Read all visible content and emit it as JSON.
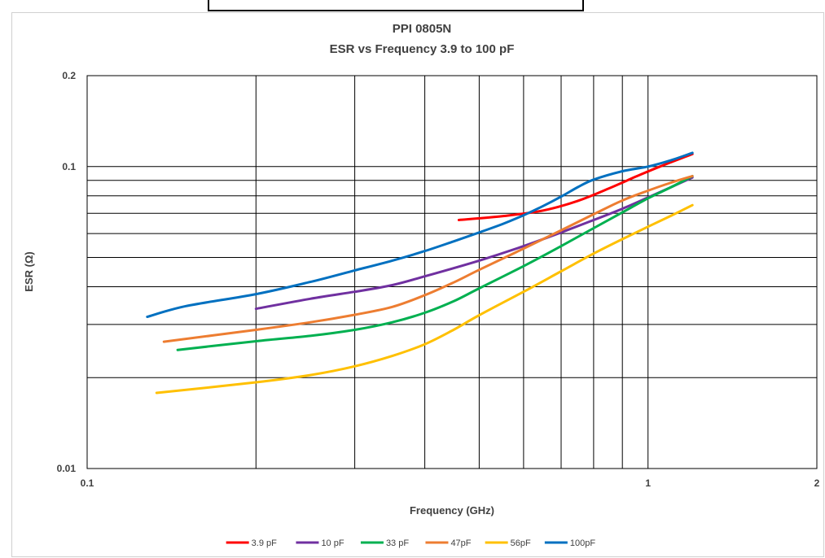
{
  "chart_data": {
    "type": "line",
    "title": "PPI 0805N",
    "subtitle": "ESR vs Frequency 3.9 to 100 pF",
    "xlabel": "Frequency (GHz)",
    "ylabel": "ESR (Ω)",
    "x_scale": "log",
    "y_scale": "log",
    "xlim": [
      0.1,
      2
    ],
    "ylim": [
      0.01,
      0.2
    ],
    "x_ticks": [
      {
        "value": 0.1,
        "label": "0.1"
      },
      {
        "value": 1,
        "label": "1"
      },
      {
        "value": 2,
        "label": "2"
      }
    ],
    "y_ticks": [
      {
        "value": 0.2,
        "label": "0.2"
      },
      {
        "value": 0.1,
        "label": "0.1"
      },
      {
        "value": 0.01,
        "label": "0.01"
      }
    ],
    "x_gridlines": [
      0.2,
      0.3,
      0.4,
      0.5,
      0.6,
      0.7,
      0.8,
      0.9,
      1
    ],
    "y_gridlines": [
      0.02,
      0.03,
      0.04,
      0.05,
      0.06,
      0.07,
      0.08,
      0.09,
      0.1
    ],
    "legend_position": "bottom",
    "series": [
      {
        "name": "3.9 pF",
        "color": "#ff0000",
        "points": [
          [
            0.46,
            0.0665
          ],
          [
            0.55,
            0.0685
          ],
          [
            0.65,
            0.0715
          ],
          [
            0.75,
            0.077
          ],
          [
            0.85,
            0.0845
          ],
          [
            0.95,
            0.0925
          ],
          [
            1.05,
            0.1
          ],
          [
            1.2,
            0.11
          ]
        ]
      },
      {
        "name": "10 pF",
        "color": "#7030a0",
        "points": [
          [
            0.2,
            0.0338
          ],
          [
            0.25,
            0.0365
          ],
          [
            0.3,
            0.0385
          ],
          [
            0.35,
            0.0405
          ],
          [
            0.4,
            0.0433
          ],
          [
            0.5,
            0.0488
          ],
          [
            0.6,
            0.0545
          ],
          [
            0.7,
            0.0605
          ],
          [
            0.8,
            0.0665
          ],
          [
            0.9,
            0.0725
          ],
          [
            1.0,
            0.079
          ],
          [
            1.1,
            0.0855
          ],
          [
            1.2,
            0.092
          ]
        ]
      },
      {
        "name": "33 pF",
        "color": "#00b050",
        "points": [
          [
            0.145,
            0.0247
          ],
          [
            0.2,
            0.0264
          ],
          [
            0.25,
            0.0275
          ],
          [
            0.3,
            0.0288
          ],
          [
            0.35,
            0.0305
          ],
          [
            0.4,
            0.0328
          ],
          [
            0.45,
            0.0358
          ],
          [
            0.5,
            0.0395
          ],
          [
            0.6,
            0.0468
          ],
          [
            0.7,
            0.0545
          ],
          [
            0.8,
            0.0625
          ],
          [
            0.9,
            0.0705
          ],
          [
            1.0,
            0.0785
          ],
          [
            1.1,
            0.0855
          ],
          [
            1.2,
            0.093
          ]
        ]
      },
      {
        "name": "47pF",
        "color": "#ed7d31",
        "points": [
          [
            0.137,
            0.0263
          ],
          [
            0.2,
            0.0288
          ],
          [
            0.25,
            0.0305
          ],
          [
            0.3,
            0.0323
          ],
          [
            0.35,
            0.0343
          ],
          [
            0.4,
            0.0375
          ],
          [
            0.45,
            0.0413
          ],
          [
            0.5,
            0.0455
          ],
          [
            0.6,
            0.0535
          ],
          [
            0.7,
            0.0615
          ],
          [
            0.8,
            0.0695
          ],
          [
            0.9,
            0.0772
          ],
          [
            1.0,
            0.0832
          ],
          [
            1.1,
            0.0885
          ],
          [
            1.2,
            0.093
          ]
        ]
      },
      {
        "name": "56pF",
        "color": "#ffc000",
        "points": [
          [
            0.133,
            0.0178
          ],
          [
            0.2,
            0.0193
          ],
          [
            0.25,
            0.0204
          ],
          [
            0.3,
            0.0218
          ],
          [
            0.35,
            0.0236
          ],
          [
            0.4,
            0.0258
          ],
          [
            0.45,
            0.0288
          ],
          [
            0.5,
            0.0322
          ],
          [
            0.6,
            0.0385
          ],
          [
            0.7,
            0.045
          ],
          [
            0.8,
            0.0515
          ],
          [
            0.9,
            0.0575
          ],
          [
            1.0,
            0.0632
          ],
          [
            1.1,
            0.0688
          ],
          [
            1.2,
            0.0745
          ]
        ]
      },
      {
        "name": "100pF",
        "color": "#0070c0",
        "points": [
          [
            0.128,
            0.0318
          ],
          [
            0.15,
            0.0345
          ],
          [
            0.2,
            0.0378
          ],
          [
            0.25,
            0.0415
          ],
          [
            0.3,
            0.0453
          ],
          [
            0.35,
            0.0488
          ],
          [
            0.4,
            0.0525
          ],
          [
            0.45,
            0.0565
          ],
          [
            0.5,
            0.0605
          ],
          [
            0.55,
            0.0645
          ],
          [
            0.6,
            0.069
          ],
          [
            0.65,
            0.074
          ],
          [
            0.7,
            0.0795
          ],
          [
            0.75,
            0.0855
          ],
          [
            0.8,
            0.0905
          ],
          [
            0.9,
            0.0965
          ],
          [
            1.0,
            0.1
          ],
          [
            1.1,
            0.105
          ],
          [
            1.2,
            0.111
          ]
        ]
      }
    ]
  }
}
